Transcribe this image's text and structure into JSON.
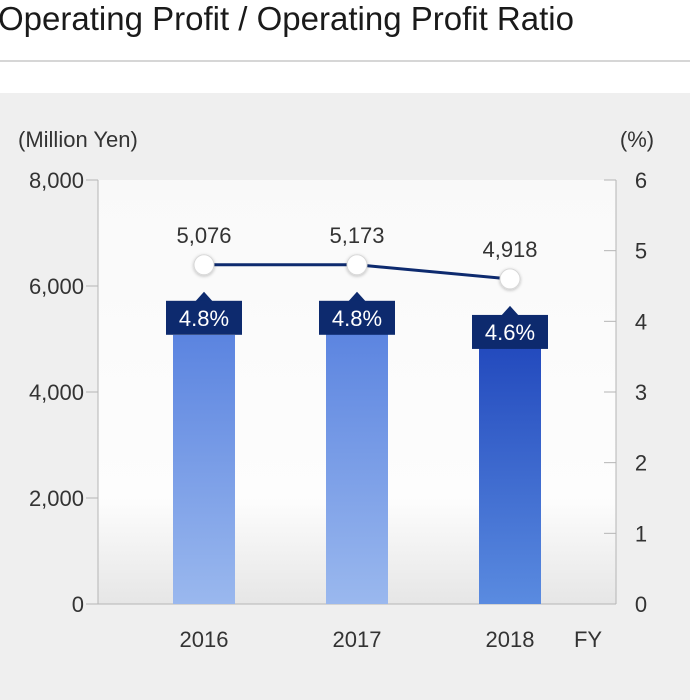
{
  "page": {
    "title": "Operating Profit / Operating Profit Ratio"
  },
  "chart_data": {
    "type": "bar",
    "categories": [
      "2016",
      "2017",
      "2018"
    ],
    "xlabel": "FY",
    "left_axis": {
      "unit_label": "(Million Yen)",
      "range": [
        0,
        8000
      ],
      "ticks": [
        0,
        2000,
        4000,
        6000,
        8000
      ],
      "tick_labels": [
        "0",
        "2,000",
        "4,000",
        "6,000",
        "8,000"
      ]
    },
    "right_axis": {
      "unit_label": "(%)",
      "range": [
        0,
        6
      ],
      "ticks": [
        0,
        1,
        2,
        3,
        4,
        5,
        6
      ],
      "tick_labels": [
        "0",
        "1",
        "2",
        "3",
        "4",
        "5",
        "6"
      ]
    },
    "series": [
      {
        "kind": "bar",
        "axis": "left",
        "values": [
          5076,
          5173,
          4918
        ],
        "data_labels": [
          "5,076",
          "5,173",
          "4,918"
        ]
      },
      {
        "kind": "line",
        "axis": "right",
        "values": [
          4.8,
          4.8,
          4.6
        ],
        "data_labels": [
          "4.8%",
          "4.8%",
          "4.6%"
        ]
      }
    ],
    "colors": {
      "bar_top": "#5b84e0",
      "bar_bottom": "#9ab8ee",
      "bar_highlight_top": "#2249bd",
      "bar_highlight_bottom": "#5a8be0",
      "line": "#0d2a6e",
      "ratio_label_bg": "#0d2a6e"
    },
    "highlight_index": 2,
    "grid": false,
    "legend": "none"
  }
}
